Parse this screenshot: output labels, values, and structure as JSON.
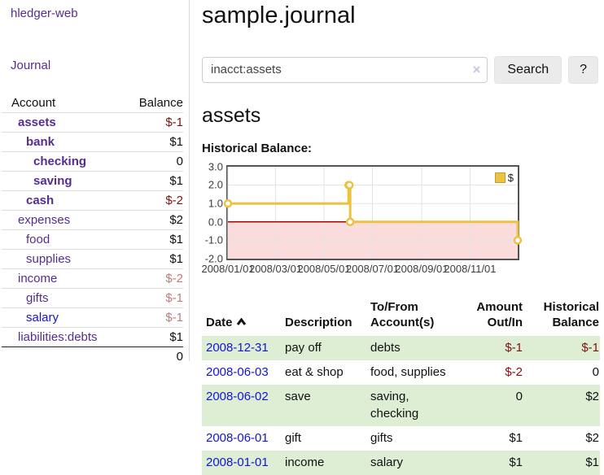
{
  "app": {
    "title": "hledger-web",
    "nav_journal": "Journal"
  },
  "sidebar": {
    "header": {
      "account": "Account",
      "balance": "Balance"
    },
    "accounts": [
      {
        "name": "assets",
        "balance": "$-1"
      },
      {
        "name": "bank",
        "balance": "$1"
      },
      {
        "name": "checking",
        "balance": "0"
      },
      {
        "name": "saving",
        "balance": "$1"
      },
      {
        "name": "cash",
        "balance": "$-2"
      },
      {
        "name": "expenses",
        "balance": "$2"
      },
      {
        "name": "food",
        "balance": "$1"
      },
      {
        "name": "supplies",
        "balance": "$1"
      },
      {
        "name": "income",
        "balance": "$-2"
      },
      {
        "name": "gifts",
        "balance": "$-1"
      },
      {
        "name": "salary",
        "balance": "$-1"
      },
      {
        "name": "liabilities:debts",
        "balance": "$1"
      }
    ],
    "total": "0"
  },
  "header": {
    "title": "sample.journal"
  },
  "search": {
    "value": "inacct:assets",
    "clear_icon": "×",
    "button_label": "Search",
    "help_label": "?"
  },
  "account_page": {
    "heading": "assets",
    "chart_label": "Historical Balance:"
  },
  "chart_data": {
    "type": "line",
    "title": "Historical Balance",
    "series": [
      {
        "name": "$",
        "points": [
          [
            "2008-01-01",
            1
          ],
          [
            "2008-06-01",
            2
          ],
          [
            "2008-06-02",
            2
          ],
          [
            "2008-06-03",
            0
          ],
          [
            "2008-12-31",
            -1
          ]
        ]
      }
    ],
    "x_range": [
      "2008-01-01",
      "2008-12-31"
    ],
    "x_ticks": [
      "2008/01/01",
      "2008/03/01",
      "2008/05/01",
      "2008/07/01",
      "2008/09/01",
      "2008/11/01"
    ],
    "y_ticks": [
      "3.0",
      "2.0",
      "1.0",
      "0.0",
      "-1.0",
      "-2.0"
    ],
    "ylim": [
      -2,
      3
    ],
    "grid": true,
    "legend": "$",
    "legend_position": "top-right",
    "line_color": "#edc240",
    "negative_fill_color": "#fbdcdc",
    "zero_line_color": "#aa0000"
  },
  "table": {
    "headers": {
      "date": "Date",
      "description": "Description",
      "tofrom": "To/From Account(s)",
      "amount": "Amount Out/In",
      "historical": "Historical Balance"
    },
    "rows": [
      {
        "date": "2008-12-31",
        "description": "pay off",
        "accounts": "debts",
        "amount": "$-1",
        "balance": "$-1"
      },
      {
        "date": "2008-06-03",
        "description": "eat & shop",
        "accounts": "food, supplies",
        "amount": "$-2",
        "balance": "0"
      },
      {
        "date": "2008-06-02",
        "description": "save",
        "accounts": "saving, checking",
        "amount": "0",
        "balance": "$2"
      },
      {
        "date": "2008-06-01",
        "description": "gift",
        "accounts": "gifts",
        "amount": "$1",
        "balance": "$2"
      },
      {
        "date": "2008-01-01",
        "description": "income",
        "accounts": "salary",
        "amount": "$1",
        "balance": "$1"
      }
    ]
  },
  "colors": {
    "accent_purple": "#552d90",
    "link_blue": "#1414d6",
    "negative_strong": "#7f1111",
    "negative_muted": "#bf7b7b",
    "row_stripe_green": "#ddeed4",
    "chart_line_gold": "#edc240",
    "chart_negative_fill": "#fbdcdc",
    "chart_zero_line": "#aa0000"
  },
  "icons": {
    "search_clear": "×",
    "sort_ascending": "chevron-up"
  }
}
